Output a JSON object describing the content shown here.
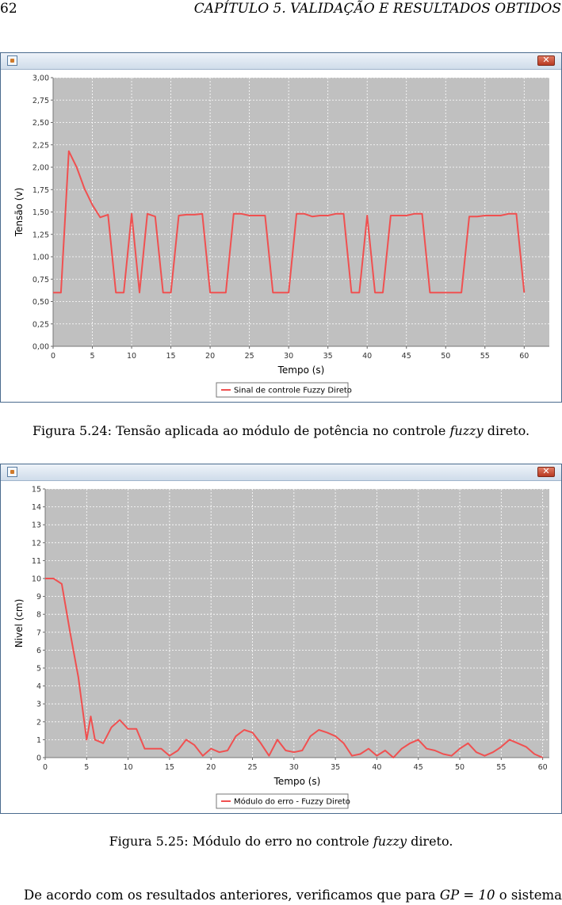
{
  "header": {
    "page_number": "62",
    "chapter_title": "CAPÍTULO 5.  VALIDAÇÃO E RESULTADOS OBTIDOS"
  },
  "figures": [
    {
      "caption_prefix": "Figura 5.24: Tensão aplicada ao módulo de potência no controle ",
      "caption_emph": "fuzzy",
      "caption_suffix": " direto."
    },
    {
      "caption_prefix": "Figura 5.25: Módulo do erro no controle ",
      "caption_emph": "fuzzy",
      "caption_suffix": " direto."
    }
  ],
  "body": {
    "words": [
      "De",
      "acordo",
      "com",
      "os",
      "resultados",
      "anteriores,",
      "verificamos",
      "que",
      "para"
    ],
    "math": "GP = 10",
    "tail": [
      "o",
      "sistema"
    ]
  },
  "colors": {
    "plot_bg": "#c0c0c0",
    "series": "#f05050",
    "window_border": "#4a6b8e"
  },
  "chart_data": [
    {
      "type": "line",
      "xlabel": "Tempo (s)",
      "ylabel": "Tensão (v)",
      "xlim": [
        0,
        63.2
      ],
      "ylim": [
        0,
        3
      ],
      "xticks": [
        0,
        5,
        10,
        15,
        20,
        25,
        30,
        35,
        40,
        45,
        50,
        55,
        60
      ],
      "xtick_labels": [
        "0",
        "5",
        "10",
        "15",
        "20",
        "25",
        "30",
        "35",
        "40",
        "45",
        "50",
        "55",
        "60"
      ],
      "yticks": [
        0,
        0.25,
        0.5,
        0.75,
        1,
        1.25,
        1.5,
        1.75,
        2,
        2.25,
        2.5,
        2.75,
        3
      ],
      "ytick_labels": [
        "0,00",
        "0,25",
        "0,50",
        "0,75",
        "1,00",
        "1,25",
        "1,50",
        "1,75",
        "2,00",
        "2,25",
        "2,50",
        "2,75",
        "3,00"
      ],
      "grid": true,
      "legend_position": "bottom-center",
      "series": [
        {
          "name": "Sinal de controle Fuzzy Direto",
          "x": [
            0,
            1,
            2,
            3,
            3.5,
            4,
            5,
            6,
            7,
            8,
            9,
            10,
            11,
            12,
            13,
            14,
            15,
            16,
            17,
            18,
            19,
            20,
            21,
            22,
            23,
            24,
            25,
            26,
            27,
            28,
            29,
            30,
            31,
            32,
            33,
            34,
            35,
            36,
            37,
            38,
            39,
            40,
            41,
            42,
            43,
            44,
            45,
            46,
            47,
            48,
            49,
            50,
            51,
            52,
            53,
            54,
            55,
            56,
            57,
            58,
            59,
            60
          ],
          "y": [
            0.6,
            0.6,
            2.18,
            2.0,
            1.88,
            1.76,
            1.58,
            1.44,
            1.47,
            0.6,
            0.6,
            1.48,
            0.6,
            1.48,
            1.45,
            0.6,
            0.6,
            1.46,
            1.47,
            1.47,
            1.48,
            0.6,
            0.6,
            0.6,
            1.48,
            1.48,
            1.46,
            1.46,
            1.46,
            0.6,
            0.6,
            0.6,
            1.48,
            1.48,
            1.45,
            1.46,
            1.46,
            1.48,
            1.48,
            0.6,
            0.6,
            1.46,
            0.6,
            0.6,
            1.46,
            1.46,
            1.46,
            1.48,
            1.48,
            0.6,
            0.6,
            0.6,
            0.6,
            0.6,
            1.45,
            1.45,
            1.46,
            1.46,
            1.46,
            1.48,
            1.48,
            0.6
          ]
        }
      ]
    },
    {
      "type": "line",
      "xlabel": "Tempo (s)",
      "ylabel": "Nivel (cm)",
      "xlim": [
        0,
        60.8
      ],
      "ylim": [
        0,
        15
      ],
      "xticks": [
        0,
        5,
        10,
        15,
        20,
        25,
        30,
        35,
        40,
        45,
        50,
        55,
        60
      ],
      "xtick_labels": [
        "0",
        "5",
        "10",
        "15",
        "20",
        "25",
        "30",
        "35",
        "40",
        "45",
        "50",
        "55",
        "60"
      ],
      "yticks": [
        0,
        1,
        2,
        3,
        4,
        5,
        6,
        7,
        8,
        9,
        10,
        11,
        12,
        13,
        14,
        15
      ],
      "ytick_labels": [
        "0",
        "1",
        "2",
        "3",
        "4",
        "5",
        "6",
        "7",
        "8",
        "9",
        "10",
        "11",
        "12",
        "13",
        "14",
        "15"
      ],
      "grid": true,
      "legend_position": "bottom-center",
      "series": [
        {
          "name": "Módulo do erro - Fuzzy Direto",
          "x": [
            0,
            1,
            2,
            3,
            4,
            5,
            5.5,
            6,
            7,
            8,
            9,
            10,
            11,
            12,
            13,
            14,
            15,
            16,
            17,
            18,
            19,
            20,
            21,
            22,
            23,
            24,
            25,
            26,
            27,
            28,
            29,
            30,
            31,
            32,
            33,
            34,
            35,
            36,
            37,
            38,
            39,
            40,
            41,
            42,
            43,
            44,
            45,
            46,
            47,
            48,
            49,
            50,
            51,
            52,
            53,
            54,
            55,
            56,
            57,
            58,
            59,
            60
          ],
          "y": [
            10,
            10,
            9.7,
            7.0,
            4.5,
            1.0,
            2.3,
            1.0,
            0.8,
            1.7,
            2.1,
            1.6,
            1.6,
            0.5,
            0.5,
            0.5,
            0.1,
            0.4,
            1.0,
            0.7,
            0.1,
            0.5,
            0.3,
            0.4,
            1.2,
            1.55,
            1.4,
            0.8,
            0.1,
            1.0,
            0.4,
            0.3,
            0.4,
            1.2,
            1.55,
            1.4,
            1.2,
            0.8,
            0.1,
            0.2,
            0.5,
            0.1,
            0.4,
            0.0,
            0.5,
            0.8,
            1.0,
            0.5,
            0.4,
            0.2,
            0.1,
            0.5,
            0.8,
            0.3,
            0.1,
            0.3,
            0.6,
            1.0,
            0.8,
            0.6,
            0.2,
            0.0
          ]
        }
      ]
    }
  ]
}
